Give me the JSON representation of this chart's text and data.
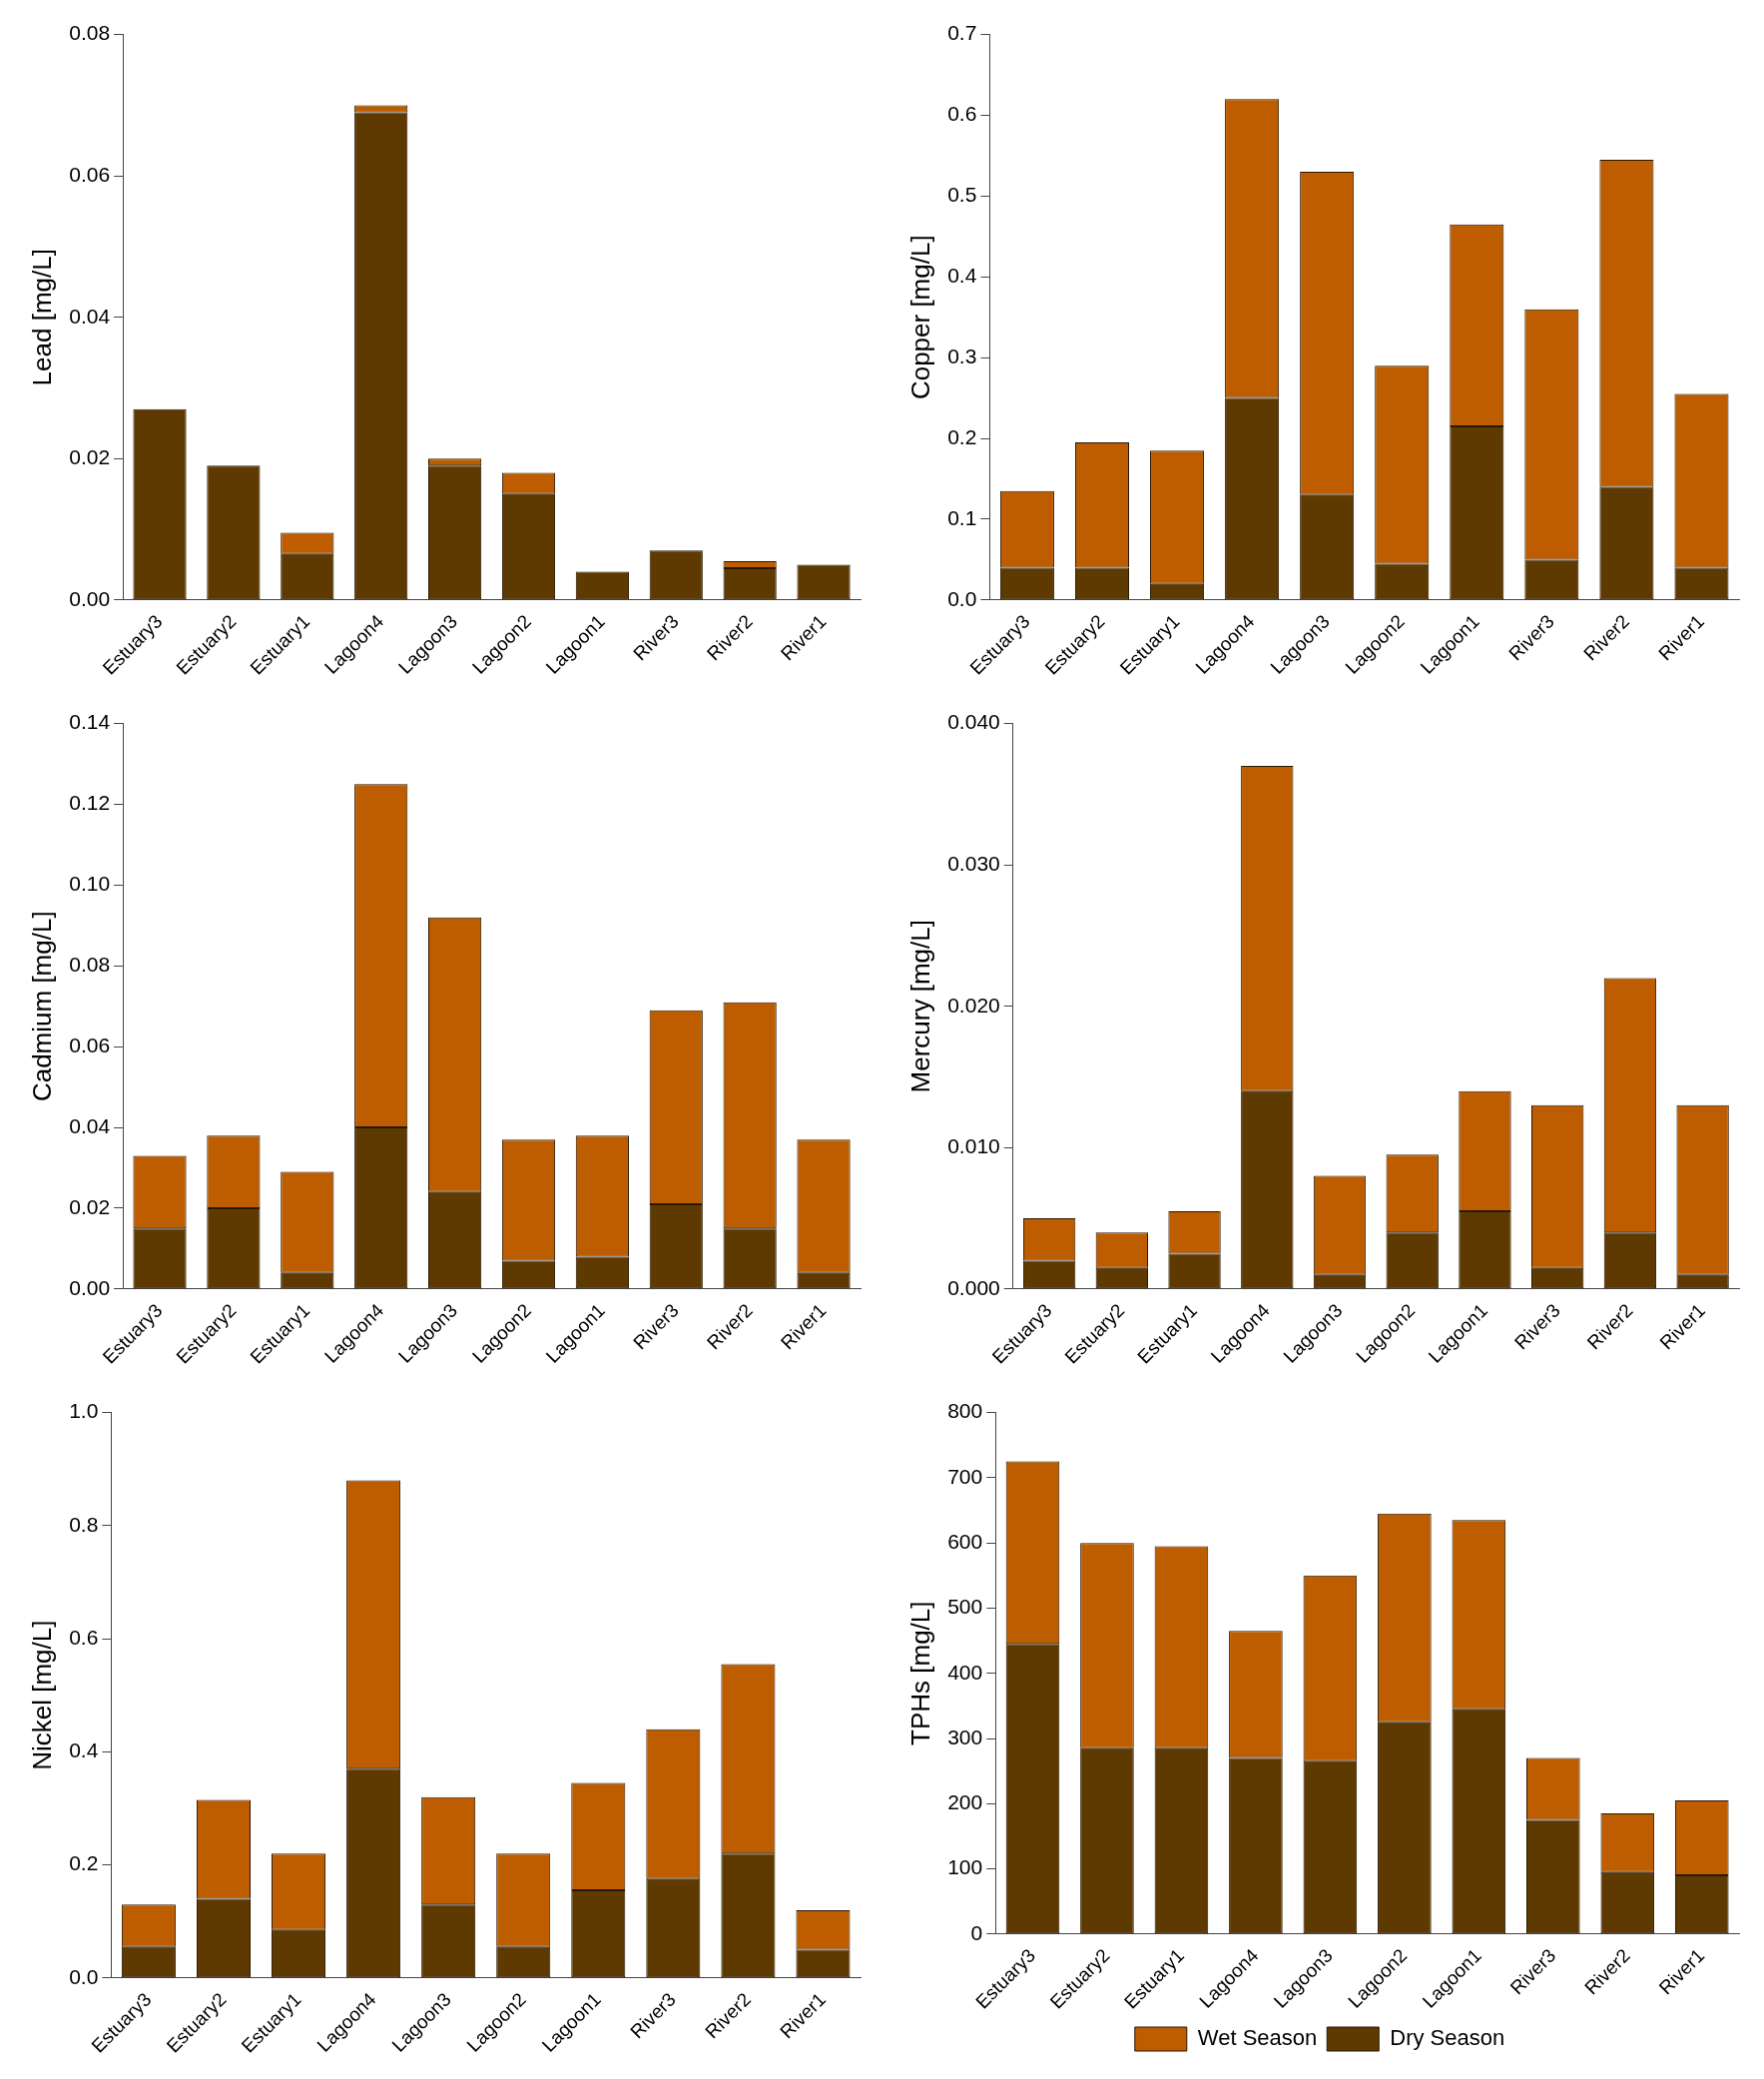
{
  "chart_data": [
    {
      "type": "bar",
      "stacked": true,
      "ylabel": "Lead [mg/L]",
      "ylim": [
        0,
        0.08
      ],
      "yticks": [
        {
          "value": 0,
          "label": "0.00"
        },
        0.02,
        0.04,
        0.06,
        0.08
      ],
      "categories": [
        "Estuary3",
        "Estuary2",
        "Estuary1",
        "Lagoon4",
        "Lagoon3",
        "Lagoon2",
        "Lagoon1",
        "River3",
        "River2",
        "River1"
      ],
      "series": [
        {
          "color": "#5e3900",
          "values": [
            0.027,
            0.019,
            0.0065,
            0.069,
            0.019,
            0.015,
            0.004,
            0.007,
            0.0045,
            0.005
          ]
        },
        {
          "color": "#bd5d00",
          "values": [
            0,
            0,
            0.003,
            0.001,
            0.001,
            0.003,
            0,
            0,
            0.001,
            0
          ]
        }
      ]
    },
    {
      "type": "bar",
      "stacked": true,
      "ylabel": "Copper [mg/L]",
      "ylim": [
        0,
        0.7
      ],
      "yticks": [
        {
          "value": 0,
          "label": "0.0"
        },
        0.1,
        0.2,
        0.3,
        0.4,
        0.5,
        0.6,
        0.7
      ],
      "categories": [
        "Estuary3",
        "Estuary2",
        "Estuary1",
        "Lagoon4",
        "Lagoon3",
        "Lagoon2",
        "Lagoon1",
        "River3",
        "River2",
        "River1"
      ],
      "series": [
        {
          "color": "#5e3900",
          "values": [
            0.04,
            0.04,
            0.02,
            0.25,
            0.13,
            0.045,
            0.215,
            0.05,
            0.14,
            0.04
          ]
        },
        {
          "color": "#bd5d00",
          "values": [
            0.095,
            0.155,
            0.165,
            0.37,
            0.4,
            0.245,
            0.25,
            0.31,
            0.405,
            0.215
          ]
        }
      ]
    },
    {
      "type": "bar",
      "stacked": true,
      "ylabel": "Cadmium [mg/L]",
      "ylim": [
        0,
        0.14
      ],
      "yticks": [
        {
          "value": 0,
          "label": "0.00"
        },
        0.02,
        0.04,
        0.06,
        0.08,
        {
          "value": 0.1,
          "label": "0.10"
        },
        0.12,
        0.14
      ],
      "categories": [
        "Estuary3",
        "Estuary2",
        "Estuary1",
        "Lagoon4",
        "Lagoon3",
        "Lagoon2",
        "Lagoon1",
        "River3",
        "River2",
        "River1"
      ],
      "series": [
        {
          "color": "#5e3900",
          "values": [
            0.015,
            0.02,
            0.004,
            0.04,
            0.024,
            0.007,
            0.008,
            0.021,
            0.015,
            0.004
          ]
        },
        {
          "color": "#bd5d00",
          "values": [
            0.018,
            0.018,
            0.025,
            0.085,
            0.068,
            0.03,
            0.03,
            0.048,
            0.056,
            0.033
          ]
        }
      ]
    },
    {
      "type": "bar",
      "stacked": true,
      "ylabel": "Mercury [mg/L]",
      "ylim": [
        0,
        0.04
      ],
      "yticks": [
        {
          "value": 0,
          "label": "0.000"
        },
        {
          "value": 0.01,
          "label": "0.010"
        },
        {
          "value": 0.02,
          "label": "0.020"
        },
        {
          "value": 0.03,
          "label": "0.030"
        },
        {
          "value": 0.04,
          "label": "0.040"
        }
      ],
      "categories": [
        "Estuary3",
        "Estuary2",
        "Estuary1",
        "Lagoon4",
        "Lagoon3",
        "Lagoon2",
        "Lagoon1",
        "River3",
        "River2",
        "River1"
      ],
      "series": [
        {
          "color": "#5e3900",
          "values": [
            0.002,
            0.0015,
            0.0025,
            0.014,
            0.001,
            0.004,
            0.0055,
            0.0015,
            0.004,
            0.001
          ]
        },
        {
          "color": "#bd5d00",
          "values": [
            0.003,
            0.0025,
            0.003,
            0.023,
            0.007,
            0.0055,
            0.0085,
            0.0115,
            0.018,
            0.012
          ]
        }
      ]
    },
    {
      "type": "bar",
      "stacked": true,
      "ylabel": "Nickel [mg/L]",
      "ylim": [
        0,
        1
      ],
      "yticks": [
        {
          "value": 0,
          "label": "0.0"
        },
        0.2,
        0.4,
        0.6,
        0.8,
        {
          "value": 1,
          "label": "1.0"
        }
      ],
      "categories": [
        "Estuary3",
        "Estuary2",
        "Estuary1",
        "Lagoon4",
        "Lagoon3",
        "Lagoon2",
        "Lagoon1",
        "River3",
        "River2",
        "River1"
      ],
      "series": [
        {
          "color": "#5e3900",
          "values": [
            0.055,
            0.14,
            0.085,
            0.37,
            0.13,
            0.055,
            0.155,
            0.175,
            0.22,
            0.05
          ]
        },
        {
          "color": "#bd5d00",
          "values": [
            0.075,
            0.175,
            0.135,
            0.51,
            0.19,
            0.165,
            0.19,
            0.265,
            0.335,
            0.07
          ]
        }
      ]
    },
    {
      "type": "bar",
      "stacked": true,
      "ylabel": "TPHs [mg/L]",
      "ylim": [
        0,
        800
      ],
      "yticks": [
        0,
        100,
        200,
        300,
        400,
        500,
        600,
        700,
        800
      ],
      "legend": "bottom",
      "categories": [
        "Estuary3",
        "Estuary2",
        "Estuary1",
        "Lagoon4",
        "Lagoon3",
        "Lagoon2",
        "Lagoon1",
        "River3",
        "River2",
        "River1"
      ],
      "series": [
        {
          "name": "Dry Season",
          "color": "#5e3900",
          "values": [
            445,
            285,
            285,
            270,
            265,
            325,
            345,
            175,
            95,
            90
          ]
        },
        {
          "name": "Wet Season",
          "color": "#bd5d00",
          "values": [
            280,
            315,
            310,
            195,
            285,
            320,
            290,
            95,
            90,
            115
          ]
        }
      ]
    }
  ]
}
